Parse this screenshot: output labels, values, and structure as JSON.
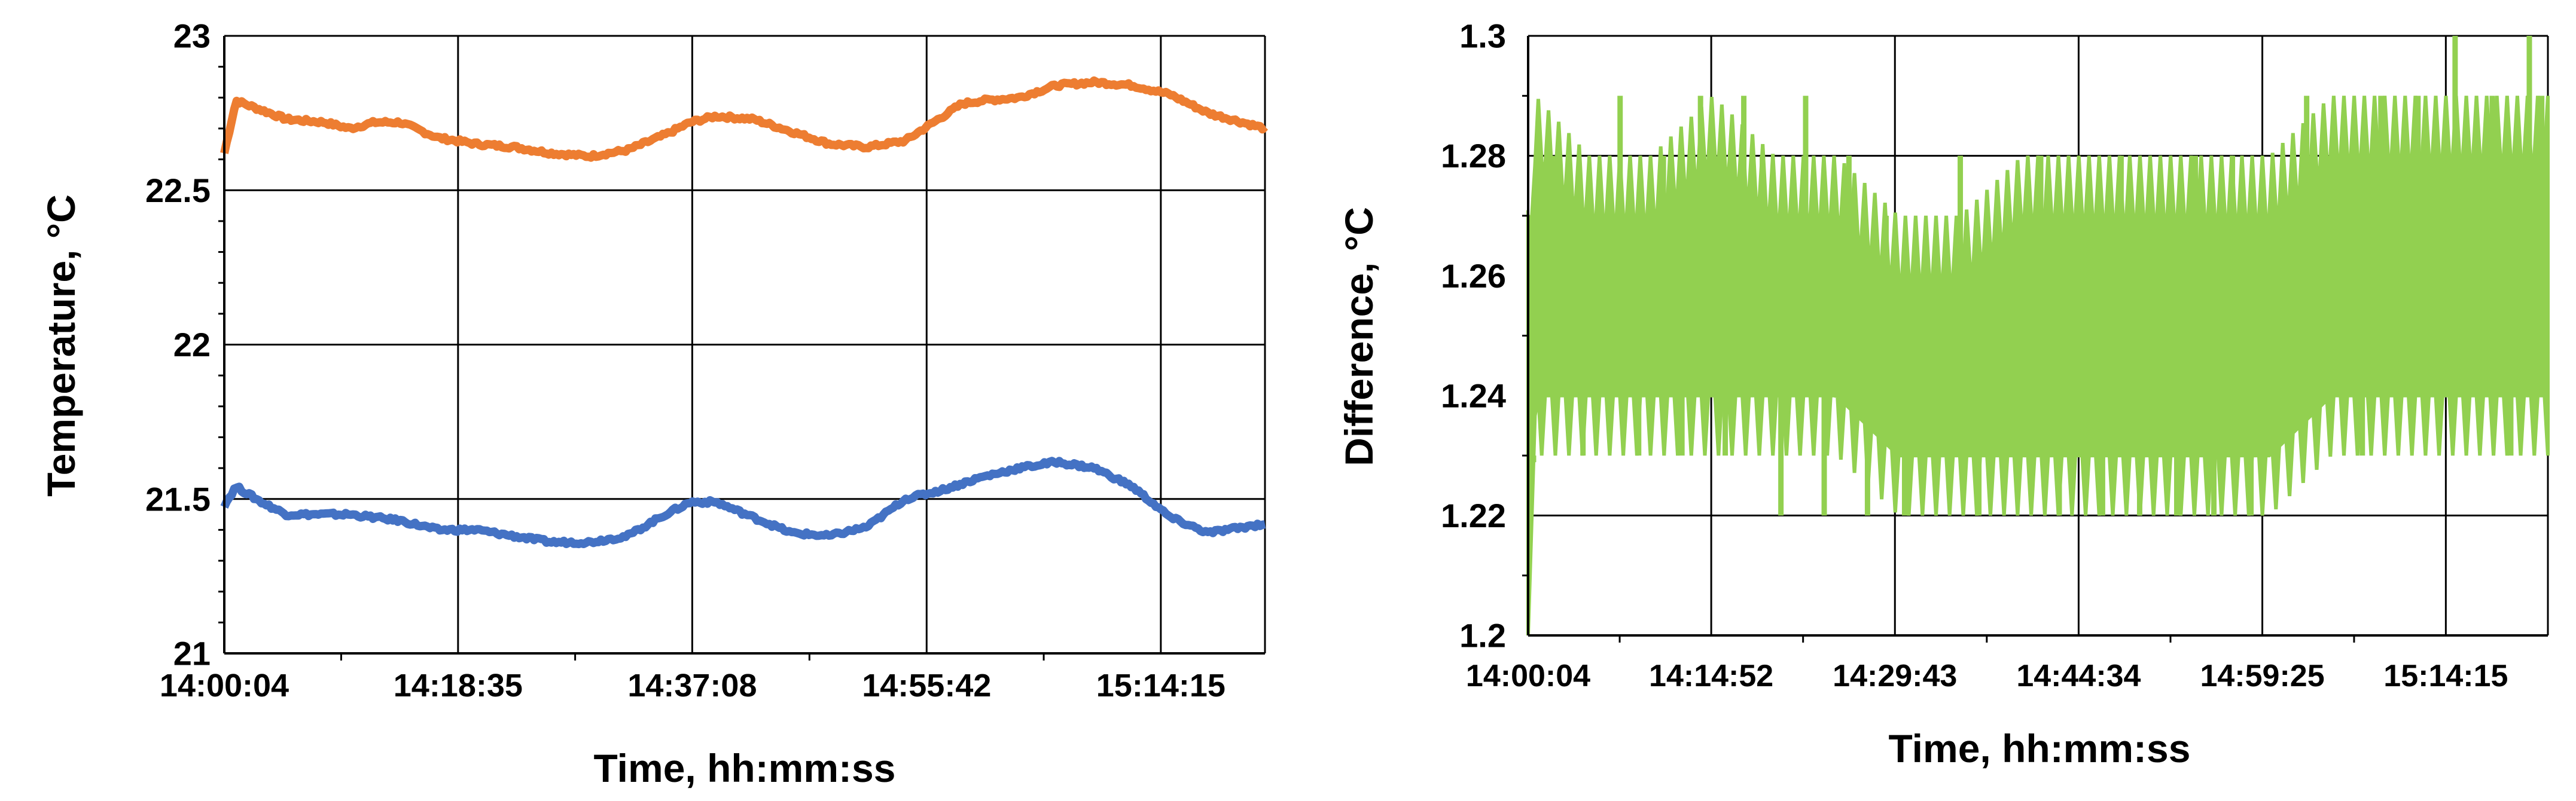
{
  "chart_data": [
    {
      "type": "line",
      "title": "",
      "xlabel": "Time, hh:mm:ss",
      "ylabel": "Temperature, °C",
      "ylim": [
        21,
        23
      ],
      "yticks": [
        "21",
        "21.5",
        "22",
        "22.5",
        "23"
      ],
      "x_tick_labels": [
        "14:00:04",
        "14:18:35",
        "14:37:08",
        "14:55:42",
        "15:14:15"
      ],
      "x_range": [
        "14:00:04",
        "15:22:30"
      ],
      "grid": true,
      "legend": "none",
      "series": [
        {
          "color": "#ED7D31",
          "x": [
            "14:00:04",
            "14:01:00",
            "14:03:00",
            "14:05:00",
            "14:08:00",
            "14:10:00",
            "14:12:00",
            "14:14:00",
            "14:17:00",
            "14:20:00",
            "14:23:00",
            "14:26:00",
            "14:29:00",
            "14:32:00",
            "14:35:00",
            "14:37:00",
            "14:39:00",
            "14:42:00",
            "14:45:00",
            "14:48:00",
            "14:51:00",
            "14:54:00",
            "14:57:00",
            "14:58:30",
            "15:00:00",
            "15:03:00",
            "15:06:00",
            "15:09:00",
            "15:12:00",
            "15:15:00",
            "15:18:00",
            "15:22:30"
          ],
          "values": [
            22.62,
            22.79,
            22.76,
            22.73,
            22.72,
            22.7,
            22.72,
            22.72,
            22.67,
            22.65,
            22.64,
            22.62,
            22.61,
            22.63,
            22.68,
            22.72,
            22.74,
            22.73,
            22.69,
            22.65,
            22.64,
            22.66,
            22.74,
            22.78,
            22.79,
            22.8,
            22.84,
            22.85,
            22.84,
            22.81,
            22.75,
            22.7
          ]
        },
        {
          "color": "#4472C4",
          "x": [
            "14:00:04",
            "14:01:00",
            "14:03:00",
            "14:05:00",
            "14:08:00",
            "14:10:00",
            "14:12:00",
            "14:14:00",
            "14:17:00",
            "14:20:00",
            "14:23:00",
            "14:26:00",
            "14:29:00",
            "14:32:00",
            "14:35:00",
            "14:37:00",
            "14:39:00",
            "14:42:00",
            "14:45:00",
            "14:48:00",
            "14:51:00",
            "14:54:00",
            "14:57:00",
            "14:58:30",
            "15:00:00",
            "15:03:00",
            "15:06:00",
            "15:09:00",
            "15:12:00",
            "15:15:00",
            "15:18:00",
            "15:22:30"
          ],
          "values": [
            21.48,
            21.54,
            21.49,
            21.45,
            21.45,
            21.45,
            21.44,
            21.43,
            21.4,
            21.4,
            21.38,
            21.36,
            21.36,
            21.38,
            21.45,
            21.49,
            21.49,
            21.44,
            21.39,
            21.38,
            21.41,
            21.5,
            21.53,
            21.55,
            21.57,
            21.6,
            21.62,
            21.6,
            21.54,
            21.44,
            21.39,
            21.42
          ]
        }
      ]
    },
    {
      "type": "line",
      "title": "",
      "xlabel": "Time, hh:mm:ss",
      "ylabel": "Difference, °C",
      "ylim": [
        1.2,
        1.3
      ],
      "yticks": [
        "1.2",
        "1.22",
        "1.24",
        "1.26",
        "1.28",
        "1.3"
      ],
      "x_tick_labels": [
        "14:00:04",
        "14:14:52",
        "14:29:43",
        "14:44:34",
        "14:59:25",
        "15:14:15"
      ],
      "x_range": [
        "14:00:04",
        "15:22:30"
      ],
      "grid": true,
      "legend": "none",
      "series": [
        {
          "color": "#92D050",
          "band_x": [
            "14:00:04",
            "14:00:40",
            "14:05:00",
            "14:10:00",
            "14:15:00",
            "14:20:00",
            "14:25:00",
            "14:30:00",
            "14:35:00",
            "14:40:00",
            "14:45:00",
            "14:50:00",
            "14:55:00",
            "15:00:00",
            "15:05:00",
            "15:10:00",
            "15:15:00",
            "15:20:00",
            "15:22:30"
          ],
          "band_low": [
            1.2,
            1.24,
            1.24,
            1.24,
            1.24,
            1.24,
            1.24,
            1.23,
            1.23,
            1.23,
            1.23,
            1.23,
            1.23,
            1.23,
            1.24,
            1.24,
            1.24,
            1.24,
            1.24
          ],
          "band_high": [
            1.26,
            1.28,
            1.27,
            1.27,
            1.28,
            1.27,
            1.27,
            1.26,
            1.26,
            1.27,
            1.27,
            1.27,
            1.27,
            1.27,
            1.28,
            1.28,
            1.28,
            1.28,
            1.28
          ],
          "spike_x": [
            "14:00:30",
            "14:02:00",
            "14:04:30",
            "14:07:30",
            "14:09:00",
            "14:11:00",
            "14:12:30",
            "14:14:00",
            "14:16:00",
            "14:17:30",
            "14:19:00",
            "14:20:30",
            "14:22:30",
            "14:24:00",
            "14:26:00",
            "14:27:30",
            "14:29:00",
            "14:30:30",
            "14:32:00",
            "14:33:30",
            "14:35:00",
            "14:36:30",
            "14:38:00",
            "14:40:00",
            "14:41:30",
            "14:43:00",
            "14:45:00",
            "14:46:30",
            "14:48:00",
            "14:49:30",
            "14:51:00",
            "14:52:30",
            "14:54:00",
            "14:55:30",
            "14:57:00",
            "14:58:30",
            "15:00:00",
            "15:01:30",
            "15:03:00",
            "15:04:30",
            "15:06:00",
            "15:07:30",
            "15:09:00",
            "15:10:30",
            "15:12:00",
            "15:13:30",
            "15:15:00",
            "15:16:30",
            "15:18:00",
            "15:19:30",
            "15:21:00",
            "15:22:00"
          ],
          "spike_values": [
            1.23,
            1.28,
            1.23,
            1.29,
            1.23,
            1.28,
            1.23,
            1.29,
            1.23,
            1.29,
            1.28,
            1.22,
            1.29,
            1.22,
            1.28,
            1.22,
            1.27,
            1.22,
            1.26,
            1.23,
            1.28,
            1.22,
            1.27,
            1.23,
            1.28,
            1.22,
            1.27,
            1.22,
            1.28,
            1.22,
            1.27,
            1.22,
            1.28,
            1.22,
            1.28,
            1.22,
            1.27,
            1.23,
            1.29,
            1.24,
            1.28,
            1.23,
            1.29,
            1.24,
            1.29,
            1.24,
            1.3,
            1.24,
            1.29,
            1.23,
            1.3,
            1.29
          ]
        }
      ]
    }
  ]
}
